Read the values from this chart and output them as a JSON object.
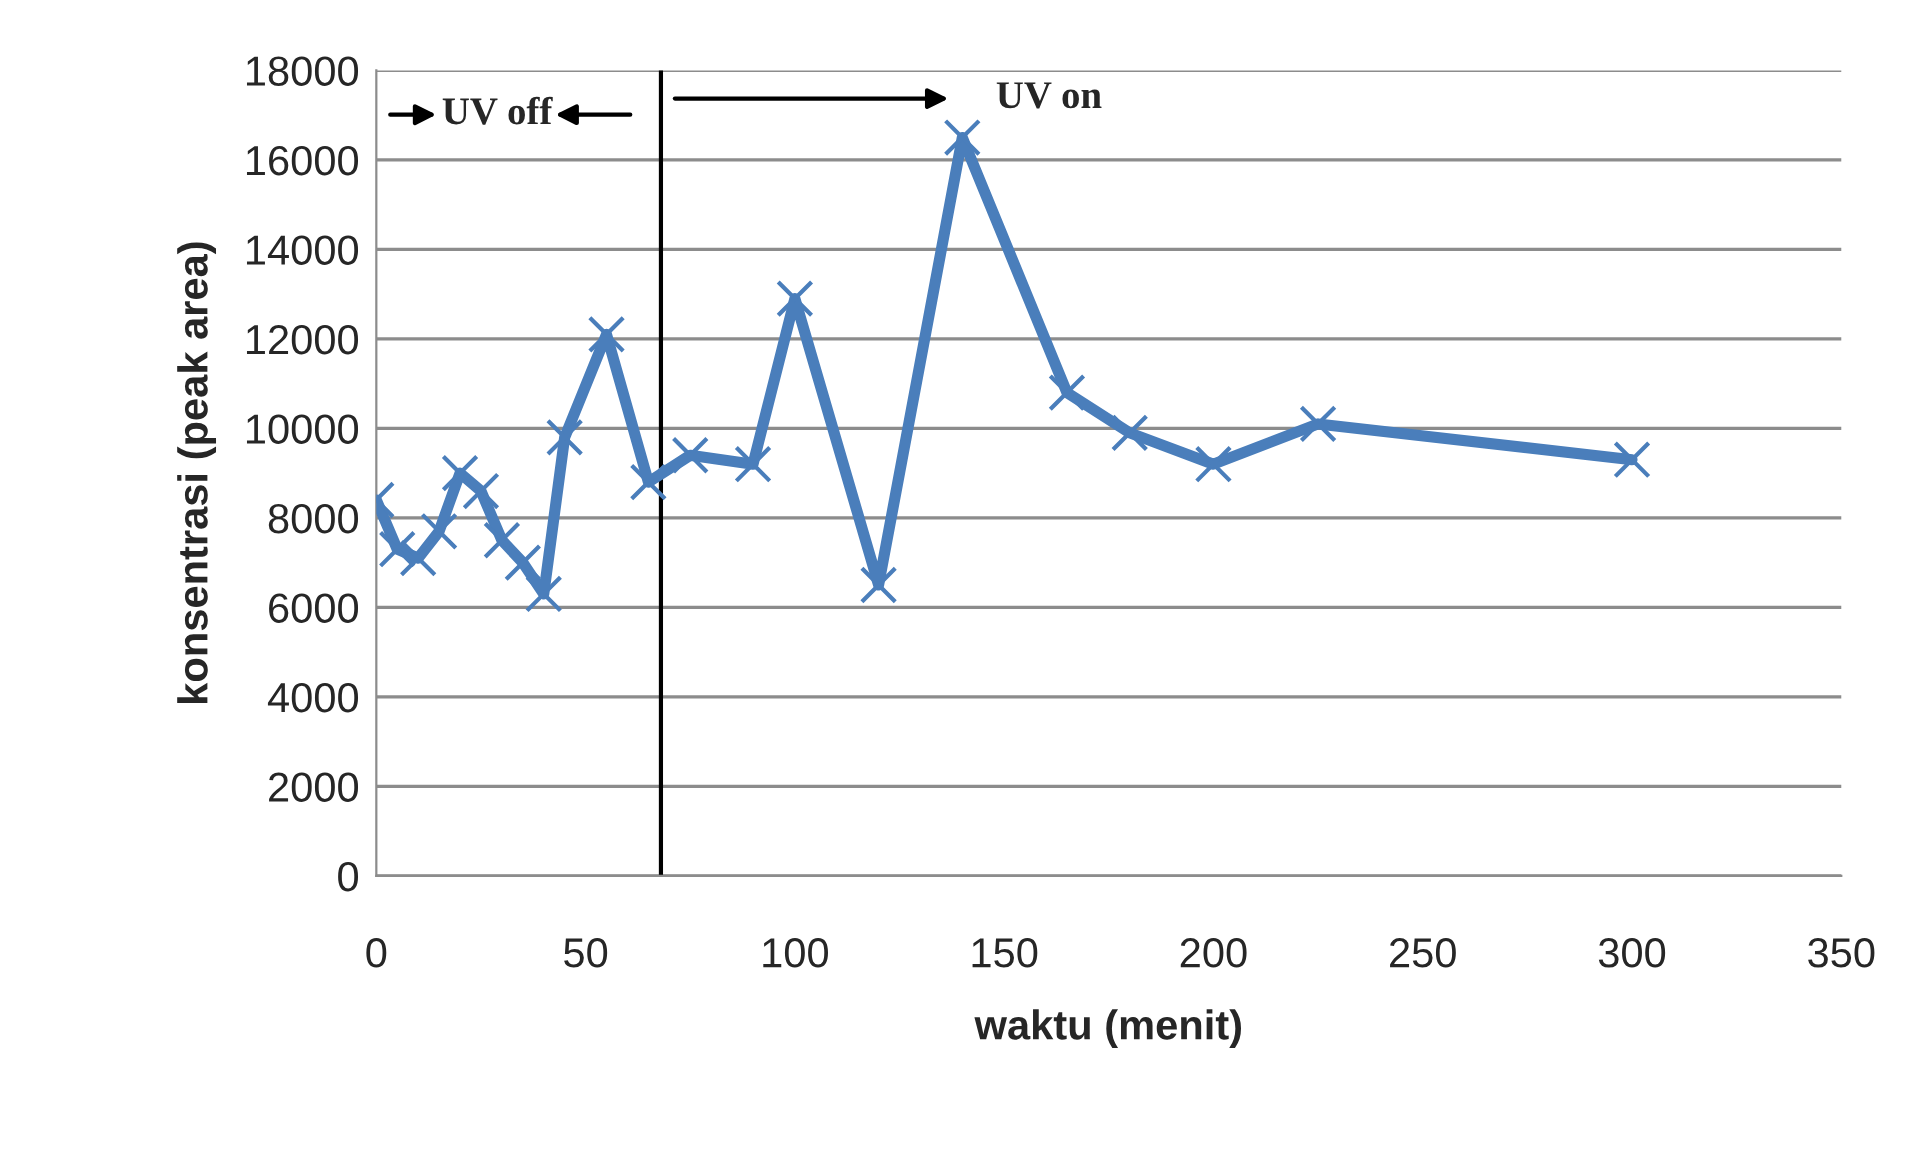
{
  "chart_data": {
    "type": "line",
    "xlabel": "waktu (menit)",
    "ylabel": "konsentrasi (peak area)",
    "x": [
      0,
      5,
      10,
      15,
      20,
      25,
      30,
      35,
      40,
      45,
      55,
      65,
      75,
      90,
      100,
      120,
      140,
      165,
      180,
      200,
      225,
      300
    ],
    "series": [
      {
        "color": "#4a7ebb",
        "values": [
          8400,
          7300,
          7100,
          7700,
          9000,
          8600,
          7500,
          7000,
          6300,
          9800,
          12100,
          8800,
          9400,
          9200,
          12900,
          6500,
          16500,
          10800,
          9900,
          9200,
          10100,
          9300
        ]
      }
    ],
    "xlim": [
      0,
      350
    ],
    "xticks": [
      0,
      50,
      100,
      150,
      200,
      250,
      300,
      350
    ],
    "ylim": [
      0,
      18000
    ],
    "yticks": [
      0,
      2000,
      4000,
      6000,
      8000,
      10000,
      12000,
      14000,
      16000,
      18000
    ],
    "grid": "y",
    "marker": "cross",
    "line_style": "solid",
    "ref_lines": [
      {
        "axis": "x",
        "value": 68,
        "color": "#000000"
      }
    ],
    "annotations": [
      "UV off",
      "UV on"
    ]
  }
}
